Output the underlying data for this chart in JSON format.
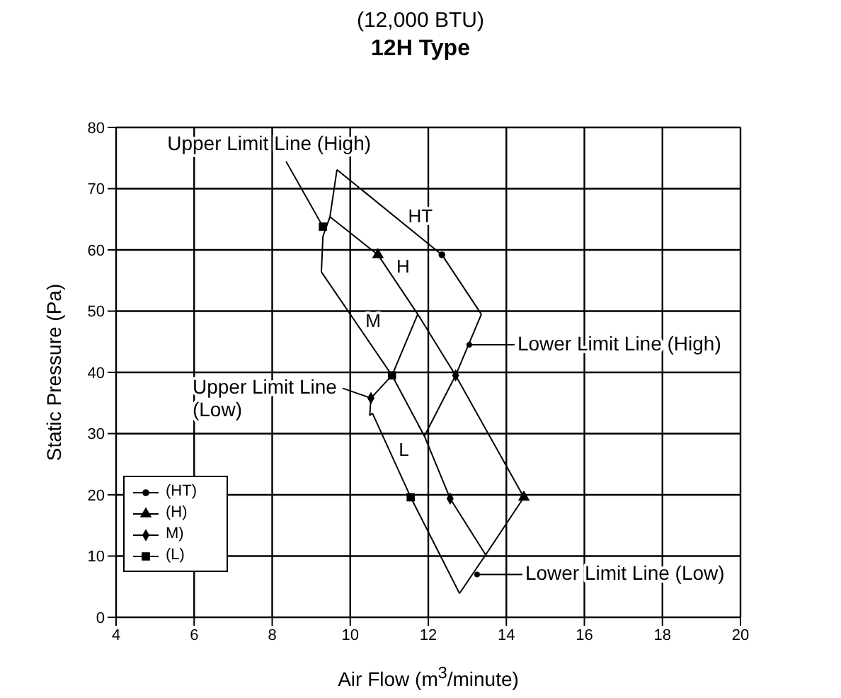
{
  "chart_data": {
    "type": "line",
    "title": "12H Type",
    "subtitle": "(12,000 BTU)",
    "xlabel": "Air Flow (m$^{3}$/minute)",
    "ylabel": "Static Pressure (Pa)",
    "xlim": [
      4,
      20
    ],
    "xticks": [
      4,
      6,
      8,
      10,
      12,
      14,
      16,
      18,
      20
    ],
    "ylim": [
      0,
      80
    ],
    "yticks": [
      0,
      10,
      20,
      30,
      40,
      50,
      60,
      70,
      80
    ],
    "grid": true,
    "legend": "bottom left",
    "series": [
      {
        "marker": "none",
        "color": "#000000",
        "x": [
          9.66,
          12.35,
          13.36
        ],
        "values": [
          73.1,
          59.2,
          49.5
        ]
      },
      {
        "marker": "none",
        "color": "#000000",
        "x": [
          9.48,
          10.71,
          11.73,
          12.7,
          14.45
        ],
        "values": [
          65.4,
          59.2,
          49.5,
          39.5,
          19.6
        ]
      },
      {
        "marker": "none",
        "color": "#000000",
        "x": [
          9.26,
          11.07,
          11.9,
          12.56,
          13.47
        ],
        "values": [
          56.4,
          39.5,
          29.6,
          19.4,
          10.2
        ]
      },
      {
        "marker": "none",
        "color": "#000000",
        "x": [
          10.57,
          11.55,
          12.8
        ],
        "values": [
          33.3,
          19.6,
          3.9
        ]
      },
      {
        "marker": "none",
        "color": "#000000",
        "x": [
          9.66,
          9.48,
          9.3,
          9.26
        ],
        "values": [
          73.1,
          65.4,
          62.2,
          56.4
        ]
      },
      {
        "marker": "none",
        "color": "#000000",
        "x": [
          11.9,
          12.7,
          13.36
        ],
        "values": [
          29.6,
          39.5,
          49.5
        ]
      },
      {
        "marker": "none",
        "color": "#000000",
        "x": [
          11.73,
          11.07,
          10.53,
          10.5,
          10.57
        ],
        "values": [
          49.5,
          39.5,
          35.8,
          33.0,
          33.3
        ]
      },
      {
        "marker": "none",
        "color": "#000000",
        "x": [
          14.45,
          13.47,
          12.8
        ],
        "values": [
          19.6,
          10.2,
          3.9
        ]
      },
      {
        "type": "scatter",
        "name": "(HT)",
        "marker": "circle",
        "color": "#000000",
        "x": [
          12.35
        ],
        "values": [
          59.2
        ]
      },
      {
        "type": "scatter",
        "name": "(H)",
        "marker": "triangle",
        "color": "#000000",
        "x": [
          10.71,
          14.45
        ],
        "values": [
          59.2,
          19.6
        ]
      },
      {
        "type": "scatter",
        "name": "M)",
        "marker": "diamond",
        "color": "#000000",
        "x": [
          12.7,
          12.56,
          10.53
        ],
        "values": [
          39.5,
          19.4,
          35.8
        ]
      },
      {
        "type": "scatter",
        "name": "(L)",
        "marker": "square",
        "color": "#000000",
        "x": [
          9.3,
          11.07,
          11.55
        ],
        "values": [
          63.8,
          39.5,
          19.6
        ]
      }
    ],
    "annotations": [
      {
        "text": "Upper Limit Line (High)",
        "x": 9.3,
        "y": 63.8
      },
      {
        "text": "Lower Limit Line (High)",
        "x": 13.05,
        "y": 44.5
      },
      {
        "text": "Upper Limit Line\n(Low)",
        "x": 10.53,
        "y": 35.8
      },
      {
        "text": "Lower Limit Line (Low)",
        "x": 13.25,
        "y": 7
      },
      {
        "text": "HT",
        "x": 11.3,
        "y": 64.6
      },
      {
        "text": "H",
        "x": 11.0,
        "y": 56.4
      },
      {
        "text": "M",
        "x": 10.21,
        "y": 47.5
      },
      {
        "text": "L",
        "x": 11.06,
        "y": 26.5
      }
    ]
  }
}
